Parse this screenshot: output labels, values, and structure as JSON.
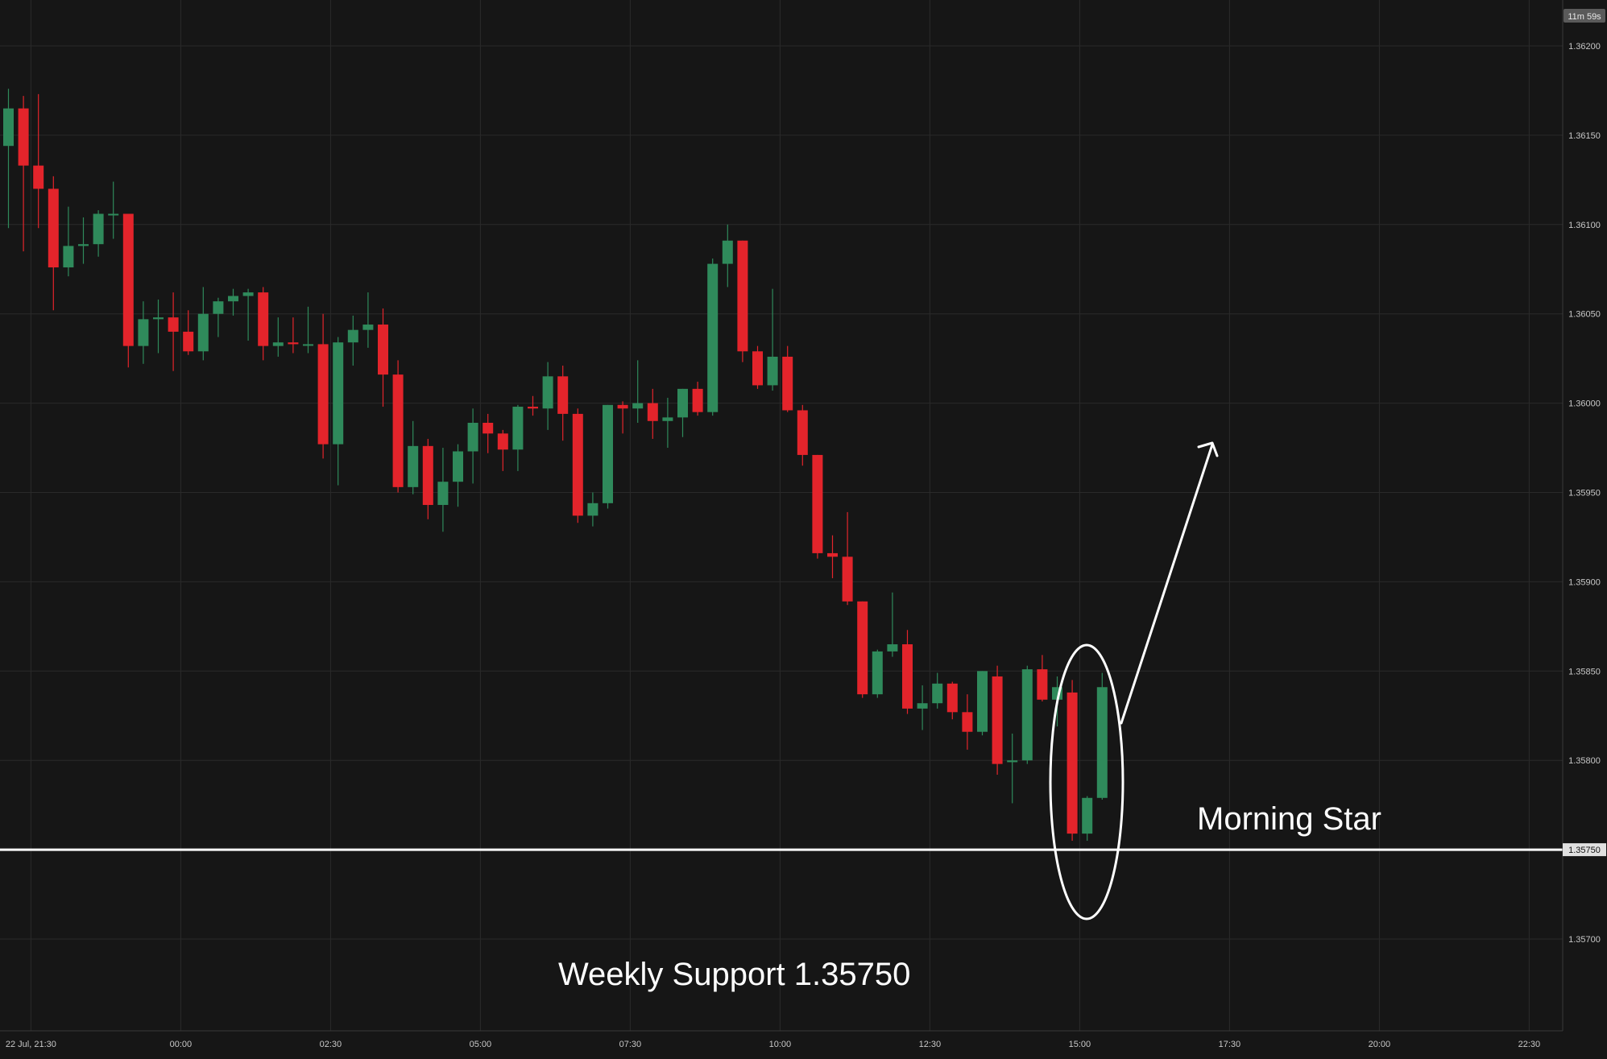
{
  "chart_data": {
    "type": "candlestick",
    "symbol_timer": "11m 59s",
    "y_axis": {
      "range": [
        1.3568,
        1.3623
      ],
      "ticks": [
        "1.36200",
        "1.36150",
        "1.36100",
        "1.36050",
        "1.36000",
        "1.35950",
        "1.35900",
        "1.35850",
        "1.35800",
        "1.35750",
        "1.35700"
      ]
    },
    "x_axis": {
      "ticks": [
        {
          "label": "22 Jul, 21:30",
          "index": 1.5
        },
        {
          "label": "00:00",
          "index": 11.5
        },
        {
          "label": "02:30",
          "index": 21.5
        },
        {
          "label": "05:00",
          "index": 31.5
        },
        {
          "label": "07:30",
          "index": 41.5
        },
        {
          "label": "10:00",
          "index": 51.5
        },
        {
          "label": "12:30",
          "index": 61.5
        },
        {
          "label": "15:00",
          "index": 71.5
        },
        {
          "label": "17:30",
          "index": 81.5
        },
        {
          "label": "20:00",
          "index": 91.5
        },
        {
          "label": "22:30",
          "index": 101.5
        }
      ]
    },
    "candles": [
      [
        1.36144,
        1.36176,
        1.36098,
        1.36165
      ],
      [
        1.36165,
        1.36172,
        1.36085,
        1.36133
      ],
      [
        1.36133,
        1.36173,
        1.36098,
        1.3612
      ],
      [
        1.3612,
        1.36127,
        1.36052,
        1.36076
      ],
      [
        1.36076,
        1.3611,
        1.36071,
        1.36088
      ],
      [
        1.36088,
        1.36104,
        1.36078,
        1.36089
      ],
      [
        1.36089,
        1.36108,
        1.36082,
        1.36106
      ],
      [
        1.36106,
        1.36124,
        1.36092,
        1.36106
      ],
      [
        1.36106,
        1.36106,
        1.3602,
        1.36032
      ],
      [
        1.36032,
        1.36057,
        1.36022,
        1.36047
      ],
      [
        1.36047,
        1.36058,
        1.36028,
        1.36048
      ],
      [
        1.36048,
        1.36062,
        1.36018,
        1.3604
      ],
      [
        1.3604,
        1.36052,
        1.36027,
        1.36029
      ],
      [
        1.36029,
        1.36065,
        1.36024,
        1.3605
      ],
      [
        1.3605,
        1.36059,
        1.36037,
        1.36057
      ],
      [
        1.36057,
        1.36064,
        1.36049,
        1.3606
      ],
      [
        1.3606,
        1.36064,
        1.36035,
        1.36062
      ],
      [
        1.36062,
        1.36065,
        1.36024,
        1.36032
      ],
      [
        1.36032,
        1.36048,
        1.36026,
        1.36034
      ],
      [
        1.36034,
        1.36048,
        1.36028,
        1.36033
      ],
      [
        1.36033,
        1.36054,
        1.36028,
        1.36033
      ],
      [
        1.36033,
        1.3605,
        1.35969,
        1.35977
      ],
      [
        1.35977,
        1.36037,
        1.35954,
        1.36034
      ],
      [
        1.36034,
        1.36049,
        1.36021,
        1.36041
      ],
      [
        1.36041,
        1.36062,
        1.36031,
        1.36044
      ],
      [
        1.36044,
        1.36053,
        1.35998,
        1.36016
      ],
      [
        1.36016,
        1.36024,
        1.3595,
        1.35953
      ],
      [
        1.35953,
        1.3599,
        1.35949,
        1.35976
      ],
      [
        1.35976,
        1.3598,
        1.35935,
        1.35943
      ],
      [
        1.35943,
        1.35975,
        1.35928,
        1.35956
      ],
      [
        1.35956,
        1.35977,
        1.35942,
        1.35973
      ],
      [
        1.35973,
        1.35997,
        1.35955,
        1.35989
      ],
      [
        1.35989,
        1.35994,
        1.35972,
        1.35983
      ],
      [
        1.35983,
        1.35985,
        1.35962,
        1.35974
      ],
      [
        1.35974,
        1.35999,
        1.35962,
        1.35998
      ],
      [
        1.35998,
        1.36004,
        1.35993,
        1.35997
      ],
      [
        1.35997,
        1.36023,
        1.35985,
        1.36015
      ],
      [
        1.36015,
        1.36021,
        1.35979,
        1.35994
      ],
      [
        1.35994,
        1.35997,
        1.35933,
        1.35937
      ],
      [
        1.35937,
        1.3595,
        1.35931,
        1.35944
      ],
      [
        1.35944,
        1.35999,
        1.35941,
        1.35999
      ],
      [
        1.35999,
        1.36001,
        1.35983,
        1.35997
      ],
      [
        1.35997,
        1.36024,
        1.35989,
        1.36
      ],
      [
        1.36,
        1.36008,
        1.3598,
        1.3599
      ],
      [
        1.3599,
        1.36003,
        1.35975,
        1.35992
      ],
      [
        1.35992,
        1.36008,
        1.35981,
        1.36008
      ],
      [
        1.36008,
        1.36012,
        1.35993,
        1.35995
      ],
      [
        1.35995,
        1.36081,
        1.35993,
        1.36078
      ],
      [
        1.36078,
        1.361,
        1.36065,
        1.36091
      ],
      [
        1.36091,
        1.36091,
        1.36023,
        1.36029
      ],
      [
        1.36029,
        1.36032,
        1.36008,
        1.3601
      ],
      [
        1.3601,
        1.36064,
        1.36007,
        1.36026
      ],
      [
        1.36026,
        1.36032,
        1.35995,
        1.35996
      ],
      [
        1.35996,
        1.35999,
        1.35965,
        1.35971
      ],
      [
        1.35971,
        1.35971,
        1.35913,
        1.35916
      ],
      [
        1.35916,
        1.35926,
        1.35902,
        1.35914
      ],
      [
        1.35914,
        1.35939,
        1.35887,
        1.35889
      ],
      [
        1.35889,
        1.35889,
        1.35835,
        1.35837
      ],
      [
        1.35837,
        1.35862,
        1.35835,
        1.35861
      ],
      [
        1.35861,
        1.35894,
        1.35858,
        1.35865
      ],
      [
        1.35865,
        1.35873,
        1.35826,
        1.35829
      ],
      [
        1.35829,
        1.35842,
        1.35817,
        1.35832
      ],
      [
        1.35832,
        1.35849,
        1.35829,
        1.35843
      ],
      [
        1.35843,
        1.35844,
        1.35823,
        1.35827
      ],
      [
        1.35827,
        1.35837,
        1.35806,
        1.35816
      ],
      [
        1.35816,
        1.3585,
        1.35814,
        1.3585
      ],
      [
        1.35847,
        1.35853,
        1.35792,
        1.35798
      ],
      [
        1.35799,
        1.35815,
        1.35776,
        1.358
      ],
      [
        1.358,
        1.35853,
        1.35798,
        1.35851
      ],
      [
        1.35851,
        1.35859,
        1.35833,
        1.35834
      ],
      [
        1.35834,
        1.35847,
        1.35819,
        1.35841
      ],
      [
        1.35838,
        1.35845,
        1.35755,
        1.35759
      ],
      [
        1.35759,
        1.3578,
        1.35755,
        1.35779
      ],
      [
        1.35779,
        1.35849,
        1.35778,
        1.35841
      ]
    ],
    "support_level": {
      "value": 1.3575,
      "label": "1.35750"
    },
    "annotations": {
      "pattern_label": "Morning Star",
      "support_label": "Weekly Support 1.35750"
    },
    "colors": {
      "background": "#161616",
      "grid": "#2a2a2a",
      "bull": "#2f8a5b",
      "bear": "#e3242b",
      "annotation": "#ffffff",
      "axis_text": "#c8c8c8"
    }
  }
}
